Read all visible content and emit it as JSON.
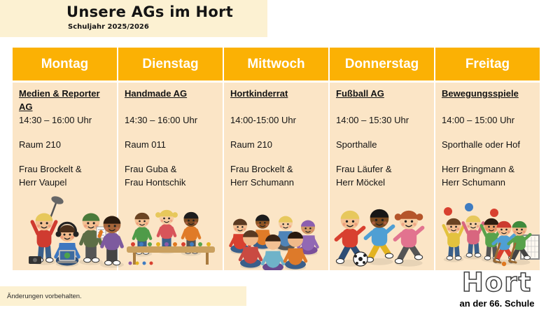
{
  "page": {
    "title": "Unsere AGs im Hort",
    "subtitle": "Schuljahr 2025/2026",
    "footnote": "Änderungen vorbehalten.",
    "logo": {
      "main": "Hort",
      "sub": "an der 66. Schule"
    }
  },
  "colors": {
    "header_orange": "#FBB104",
    "cell_peach": "#FBE5C6",
    "cream": "#FCF1D2",
    "header_text": "#FFFFFF"
  },
  "schedule": {
    "days": [
      {
        "day": "Montag",
        "ag": "Medien & Reporter AG",
        "time": "14:30 – 16:00 Uhr",
        "room": "Raum 210",
        "staff1": "Frau Brockelt &",
        "staff2": "Herr Vaupel"
      },
      {
        "day": "Dienstag",
        "ag": "Handmade AG",
        "time": "14:30 – 16:00 Uhr",
        "room": "Raum 011",
        "staff1": "Frau Guba &",
        "staff2": "Frau Hontschik"
      },
      {
        "day": "Mittwoch",
        "ag": "Hortkinderrat",
        "time": "14:00-15:00 Uhr",
        "room": "Raum 210",
        "staff1": "Frau Brockelt &",
        "staff2": "Herr Schumann"
      },
      {
        "day": "Donnerstag",
        "ag": "Fußball AG",
        "time": "14:00 – 15:30 Uhr",
        "room": "Sporthalle",
        "staff1": "Frau Läufer &",
        "staff2": "Herr Möckel"
      },
      {
        "day": "Freitag",
        "ag": "Bewegungsspiele",
        "time": "14:00 – 15:00 Uhr",
        "room": "Sporthalle oder Hof",
        "staff1": "Herr Bringmann &",
        "staff2": "Herr Schumann"
      }
    ]
  },
  "illustration_scenes": [
    "children with boom microphone, headphones, laptop and camera",
    "children crafting at a table with colorful supplies",
    "children sitting in a circle",
    "children playing football",
    "children with balls and floor hockey goal"
  ]
}
